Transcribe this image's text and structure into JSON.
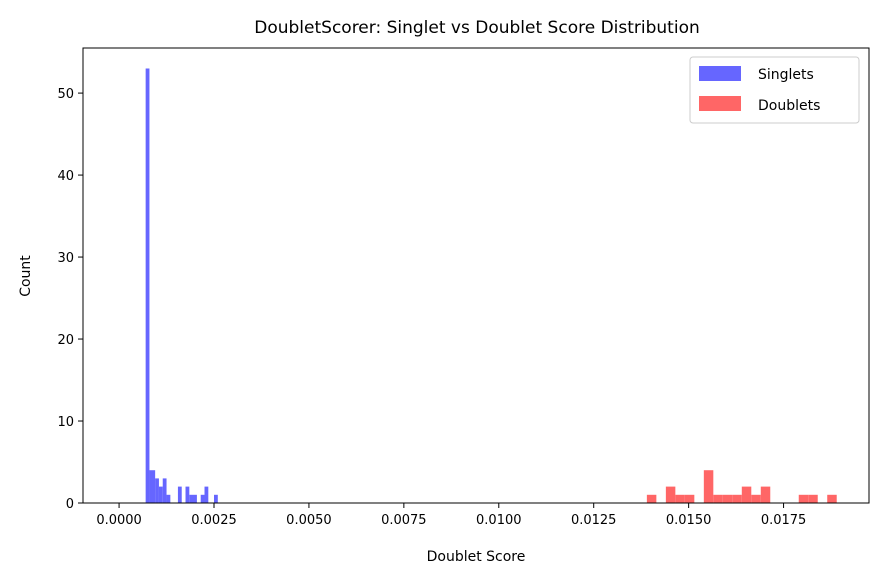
{
  "chart_data": {
    "type": "histogram",
    "title": "DoubletScorer: Singlet vs Doublet Score Distribution",
    "xlabel": "Doublet Score",
    "ylabel": "Count",
    "xlim": [
      -0.00095,
      0.01975
    ],
    "ylim": [
      0,
      55.5
    ],
    "xticks": [
      "0.0000",
      "0.0025",
      "0.0050",
      "0.0075",
      "0.0100",
      "0.0125",
      "0.0150",
      "0.0175"
    ],
    "xtick_values": [
      0,
      0.0025,
      0.005,
      0.0075,
      0.01,
      0.0125,
      0.015,
      0.0175
    ],
    "yticks": [
      "0",
      "10",
      "20",
      "30",
      "40",
      "50"
    ],
    "ytick_values": [
      0,
      10,
      20,
      30,
      40,
      50
    ],
    "grid": false,
    "legend_position": "top-right",
    "series": [
      {
        "name": "Singlets",
        "color": "#6666ff",
        "bins": [
          {
            "x0": 0.0007,
            "x1": 0.0008,
            "count": 53
          },
          {
            "x0": 0.0008,
            "x1": 0.00095,
            "count": 4
          },
          {
            "x0": 0.00095,
            "x1": 0.00105,
            "count": 3
          },
          {
            "x0": 0.00105,
            "x1": 0.00115,
            "count": 2
          },
          {
            "x0": 0.00115,
            "x1": 0.00125,
            "count": 3
          },
          {
            "x0": 0.00125,
            "x1": 0.00135,
            "count": 1
          },
          {
            "x0": 0.00155,
            "x1": 0.00165,
            "count": 2
          },
          {
            "x0": 0.00175,
            "x1": 0.00185,
            "count": 2
          },
          {
            "x0": 0.00185,
            "x1": 0.00205,
            "count": 1
          },
          {
            "x0": 0.00215,
            "x1": 0.00225,
            "count": 1
          },
          {
            "x0": 0.00225,
            "x1": 0.00235,
            "count": 2
          },
          {
            "x0": 0.0025,
            "x1": 0.0026,
            "count": 1
          }
        ]
      },
      {
        "name": "Doublets",
        "color": "#ff6666",
        "bins": [
          {
            "x0": 0.0139,
            "x1": 0.01415,
            "count": 1
          },
          {
            "x0": 0.0144,
            "x1": 0.01465,
            "count": 2
          },
          {
            "x0": 0.01465,
            "x1": 0.0149,
            "count": 1
          },
          {
            "x0": 0.0149,
            "x1": 0.01515,
            "count": 1
          },
          {
            "x0": 0.0154,
            "x1": 0.01565,
            "count": 4
          },
          {
            "x0": 0.01565,
            "x1": 0.0159,
            "count": 1
          },
          {
            "x0": 0.0159,
            "x1": 0.01615,
            "count": 1
          },
          {
            "x0": 0.01615,
            "x1": 0.0164,
            "count": 1
          },
          {
            "x0": 0.0164,
            "x1": 0.01665,
            "count": 2
          },
          {
            "x0": 0.01665,
            "x1": 0.0169,
            "count": 1
          },
          {
            "x0": 0.0169,
            "x1": 0.01715,
            "count": 2
          },
          {
            "x0": 0.0179,
            "x1": 0.01815,
            "count": 1
          },
          {
            "x0": 0.01815,
            "x1": 0.0184,
            "count": 1
          },
          {
            "x0": 0.01865,
            "x1": 0.0189,
            "count": 1
          }
        ]
      }
    ]
  }
}
